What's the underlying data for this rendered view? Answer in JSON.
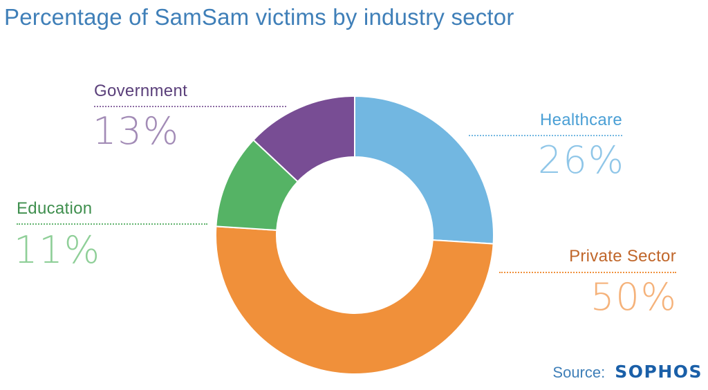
{
  "title": "Percentage of SamSam victims by industry sector",
  "source_label": "Source:",
  "logo_text": "SOPHOS",
  "chart_data": {
    "type": "pie",
    "donut": true,
    "title": "Percentage of SamSam victims by industry sector",
    "slices": [
      {
        "name": "Healthcare",
        "value": 26,
        "label": "26%",
        "color": "#72b7e1"
      },
      {
        "name": "Private Sector",
        "value": 50,
        "label": "50%",
        "color": "#f0903a"
      },
      {
        "name": "Education",
        "value": 11,
        "label": "11%",
        "color": "#55b365"
      },
      {
        "name": "Government",
        "value": 13,
        "label": "13%",
        "color": "#784d94"
      }
    ]
  }
}
